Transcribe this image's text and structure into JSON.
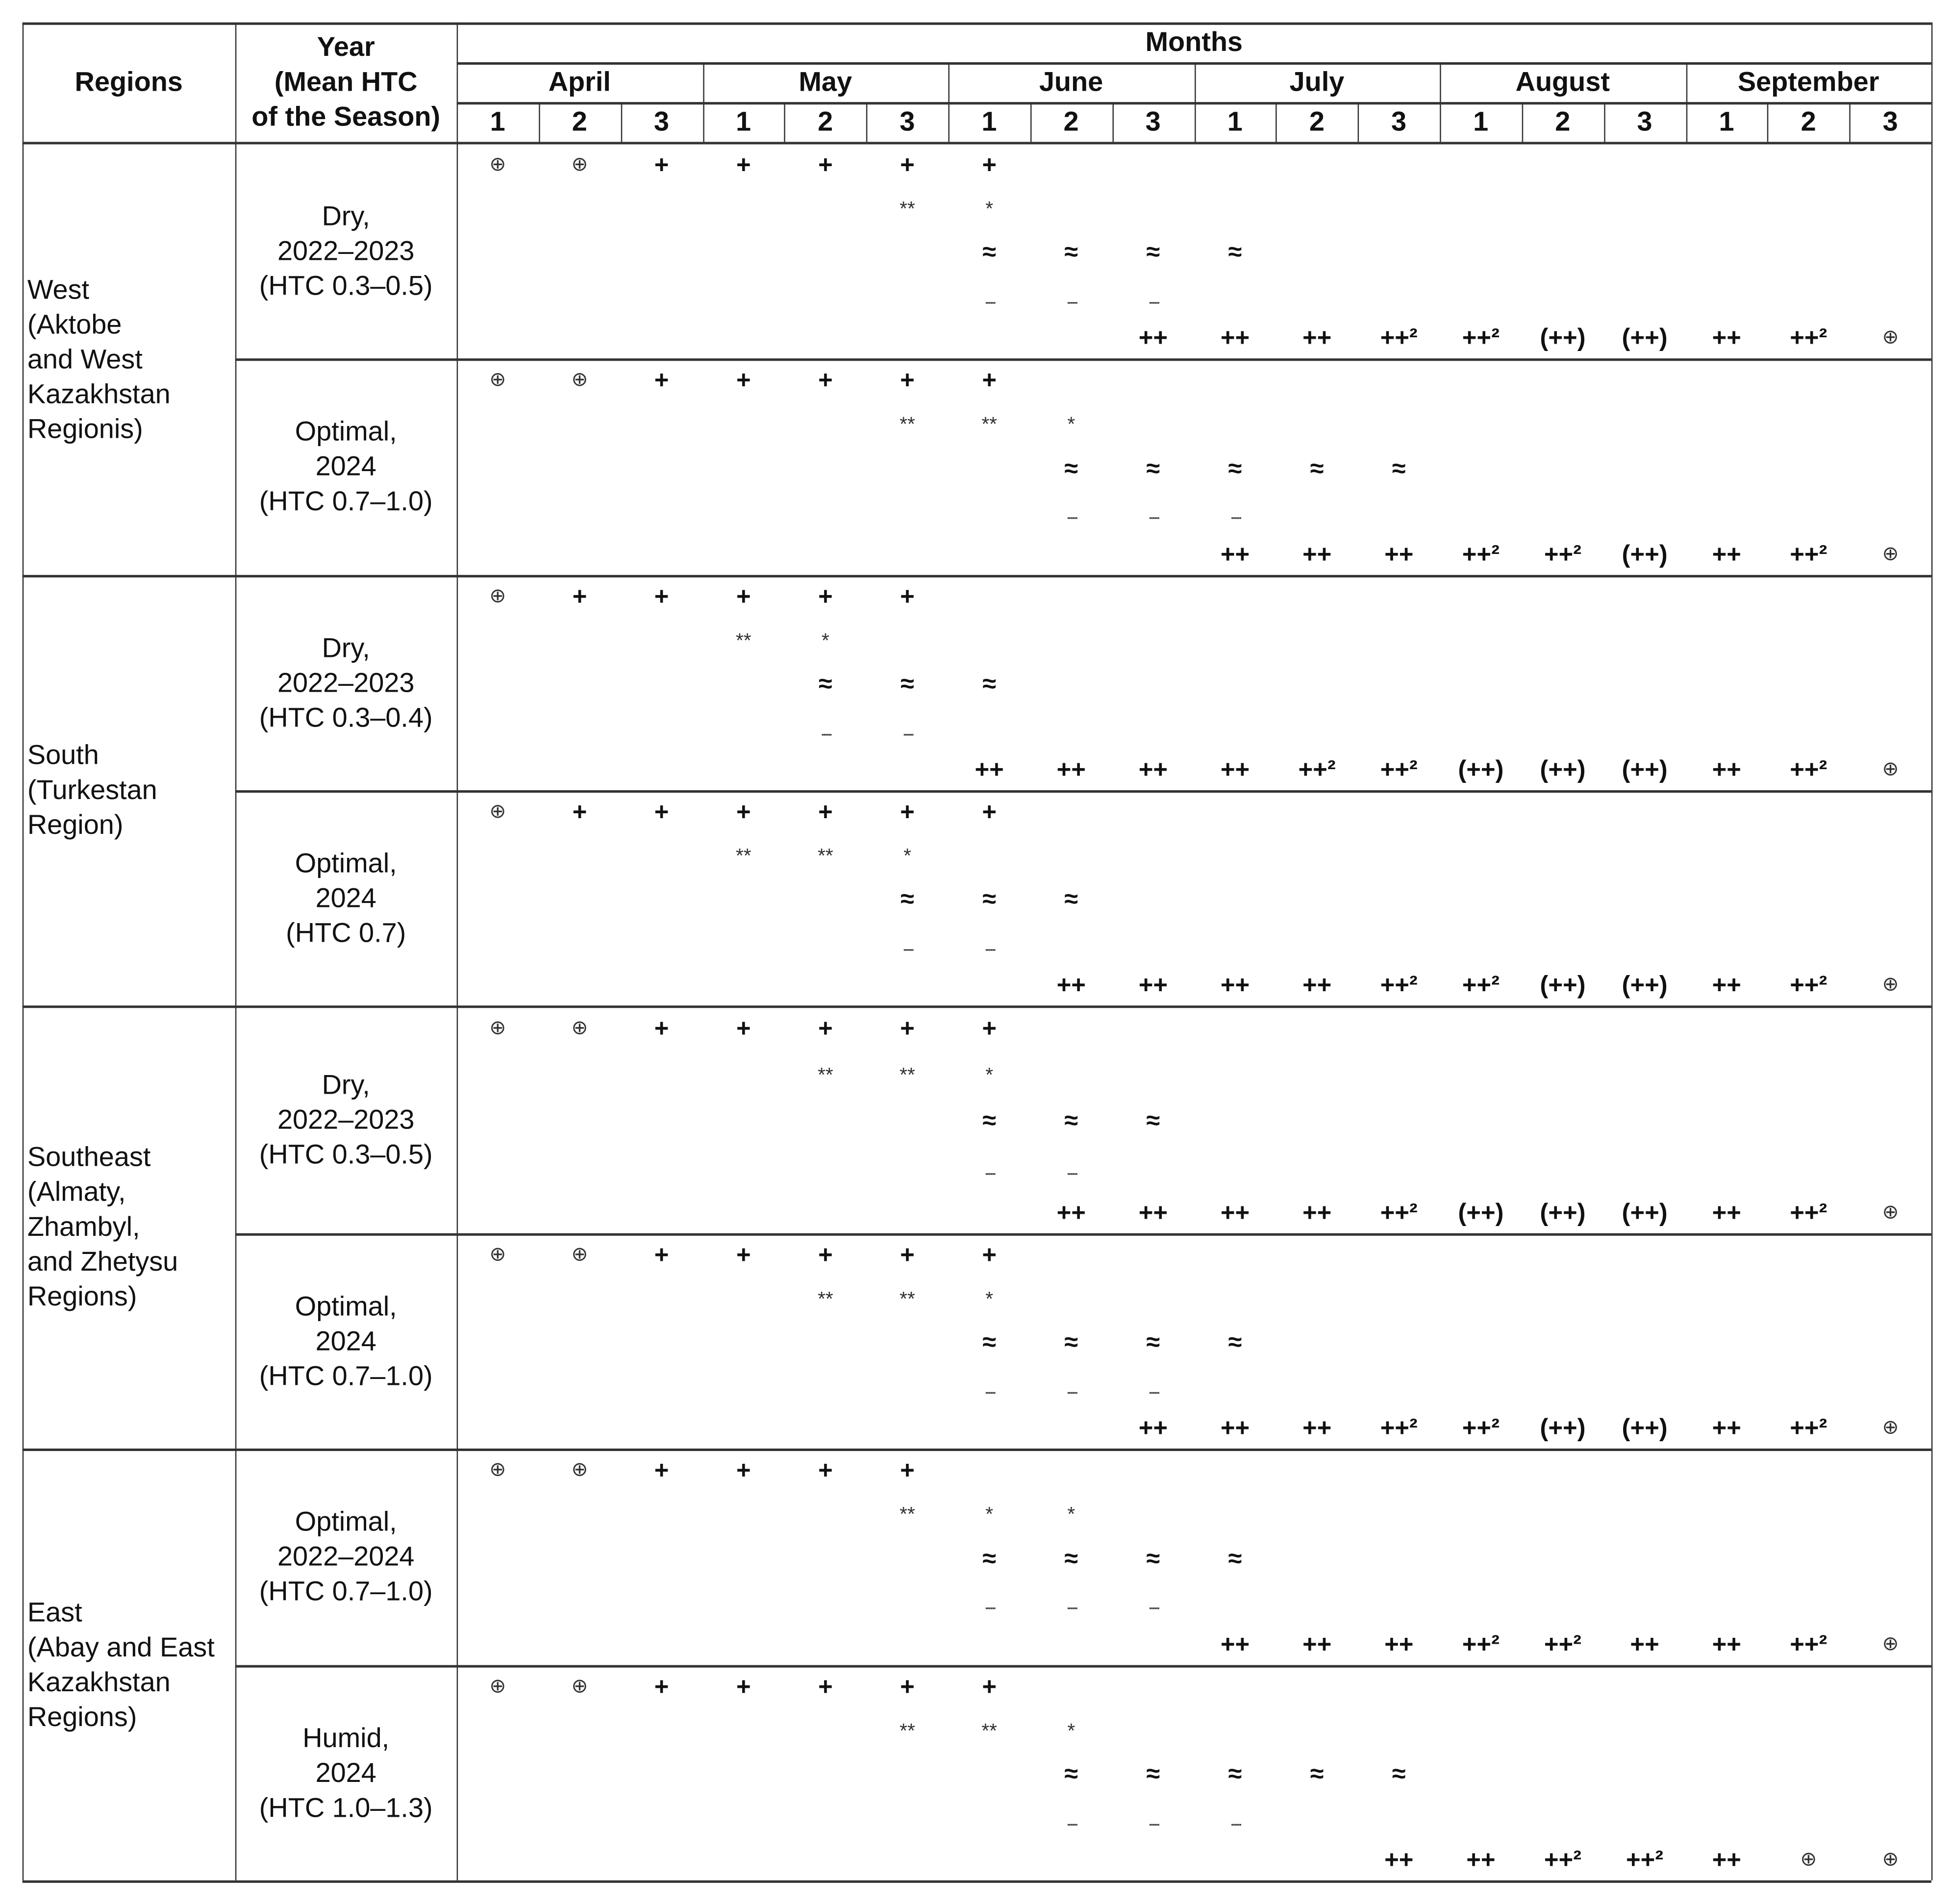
{
  "header": {
    "regions": "Regions",
    "year": "Year\n(Mean HTC\nof the Season)",
    "months_label": "Months",
    "months": [
      "April",
      "May",
      "June",
      "July",
      "August",
      "September"
    ],
    "decades": [
      "1",
      "2",
      "3"
    ]
  },
  "regions": [
    {
      "name": "West\n(Aktobe\nand West\nKazakhstan\nRegionis)",
      "rows": [
        0,
        1
      ]
    },
    {
      "name": "South\n(Turkestan\nRegion)",
      "rows": [
        2,
        3
      ]
    },
    {
      "name": "Southeast\n(Almaty,\nZhambyl,\nand Zhetysu\nRegions)",
      "rows": [
        4,
        5
      ]
    },
    {
      "name": "East\n(Abay and East\nKazakhstan\nRegions)",
      "rows": [
        6,
        7
      ]
    }
  ],
  "rows": [
    {
      "year": "Dry,\n2022–2023\n(HTC 0.3–0.5)",
      "lines": [
        [
          "⊕",
          "⊕",
          "+",
          "+",
          "+",
          "+",
          "+",
          "",
          "",
          "",
          "",
          "",
          "",
          "",
          "",
          "",
          "",
          ""
        ],
        [
          "",
          "",
          "",
          "",
          "",
          "**",
          "*",
          "",
          "",
          "",
          "",
          "",
          "",
          "",
          "",
          "",
          "",
          ""
        ],
        [
          "",
          "",
          "",
          "",
          "",
          "",
          "≈",
          "≈",
          "≈",
          "≈",
          "",
          "",
          "",
          "",
          "",
          "",
          "",
          ""
        ],
        [
          "",
          "",
          "",
          "",
          "",
          "",
          "......",
          "......",
          "......",
          "",
          "",
          "",
          "",
          "",
          "",
          "",
          "",
          ""
        ],
        [
          "",
          "",
          "",
          "",
          "",
          "",
          "",
          "",
          "++",
          "++",
          "++",
          "++²",
          "++²",
          "(++)",
          "(++)",
          "++",
          "++²",
          "⊕"
        ]
      ]
    },
    {
      "year": "Optimal,\n2024\n(HTC 0.7–1.0)",
      "lines": [
        [
          "⊕",
          "⊕",
          "+",
          "+",
          "+",
          "+",
          "+",
          "",
          "",
          "",
          "",
          "",
          "",
          "",
          "",
          "",
          "",
          ""
        ],
        [
          "",
          "",
          "",
          "",
          "",
          "**",
          "**",
          "*",
          "",
          "",
          "",
          "",
          "",
          "",
          "",
          "",
          "",
          ""
        ],
        [
          "",
          "",
          "",
          "",
          "",
          "",
          "",
          "≈",
          "≈",
          "≈",
          "≈",
          "≈",
          "",
          "",
          "",
          "",
          "",
          ""
        ],
        [
          "",
          "",
          "",
          "",
          "",
          "",
          "",
          "......",
          "......",
          "......",
          "",
          "",
          "",
          "",
          "",
          "",
          "",
          ""
        ],
        [
          "",
          "",
          "",
          "",
          "",
          "",
          "",
          "",
          "",
          "++",
          "++",
          "++",
          "++²",
          "++²",
          "(++)",
          "++",
          "++²",
          "⊕"
        ]
      ]
    },
    {
      "year": "Dry,\n2022–2023\n(HTC 0.3–0.4)",
      "lines": [
        [
          "⊕",
          "+",
          "+",
          "+",
          "+",
          "+",
          "",
          "",
          "",
          "",
          "",
          "",
          "",
          "",
          "",
          "",
          "",
          ""
        ],
        [
          "",
          "",
          "",
          "**",
          "*",
          "",
          "",
          "",
          "",
          "",
          "",
          "",
          "",
          "",
          "",
          "",
          "",
          ""
        ],
        [
          "",
          "",
          "",
          "",
          "≈",
          "≈",
          "≈",
          "",
          "",
          "",
          "",
          "",
          "",
          "",
          "",
          "",
          "",
          ""
        ],
        [
          "",
          "",
          "",
          "",
          "......",
          "......",
          "",
          "",
          "",
          "",
          "",
          "",
          "",
          "",
          "",
          "",
          "",
          ""
        ],
        [
          "",
          "",
          "",
          "",
          "",
          "",
          "++",
          "++",
          "++",
          "++",
          "++²",
          "++²",
          "(++)",
          "(++)",
          "(++)",
          "++",
          "++²",
          "⊕"
        ]
      ]
    },
    {
      "year": "Optimal,\n2024\n(HTC 0.7)",
      "lines": [
        [
          "⊕",
          "+",
          "+",
          "+",
          "+",
          "+",
          "+",
          "",
          "",
          "",
          "",
          "",
          "",
          "",
          "",
          "",
          "",
          ""
        ],
        [
          "",
          "",
          "",
          "**",
          "**",
          "*",
          "",
          "",
          "",
          "",
          "",
          "",
          "",
          "",
          "",
          "",
          "",
          ""
        ],
        [
          "",
          "",
          "",
          "",
          "",
          "≈",
          "≈",
          "≈",
          "",
          "",
          "",
          "",
          "",
          "",
          "",
          "",
          "",
          ""
        ],
        [
          "",
          "",
          "",
          "",
          "",
          "......",
          "......",
          "",
          "",
          "",
          "",
          "",
          "",
          "",
          "",
          "",
          "",
          ""
        ],
        [
          "",
          "",
          "",
          "",
          "",
          "",
          "",
          "++",
          "++",
          "++",
          "++",
          "++²",
          "++²",
          "(++)",
          "(++)",
          "++",
          "++²",
          "⊕"
        ]
      ]
    },
    {
      "year": "Dry,\n2022–2023\n(HTC 0.3–0.5)",
      "lines": [
        [
          "⊕",
          "⊕",
          "+",
          "+",
          "+",
          "+",
          "+",
          "",
          "",
          "",
          "",
          "",
          "",
          "",
          "",
          "",
          "",
          ""
        ],
        [
          "",
          "",
          "",
          "",
          "**",
          "**",
          "*",
          "",
          "",
          "",
          "",
          "",
          "",
          "",
          "",
          "",
          "",
          ""
        ],
        [
          "",
          "",
          "",
          "",
          "",
          "",
          "≈",
          "≈",
          "≈",
          "",
          "",
          "",
          "",
          "",
          "",
          "",
          "",
          ""
        ],
        [
          "",
          "",
          "",
          "",
          "",
          "",
          "......",
          "......",
          "",
          "",
          "",
          "",
          "",
          "",
          "",
          "",
          "",
          ""
        ],
        [
          "",
          "",
          "",
          "",
          "",
          "",
          "",
          "++",
          "++",
          "++",
          "++",
          "++²",
          "(++)",
          "(++)",
          "(++)",
          "++",
          "++²",
          "⊕"
        ]
      ]
    },
    {
      "year": "Optimal,\n2024\n(HTC 0.7–1.0)",
      "lines": [
        [
          "⊕",
          "⊕",
          "+",
          "+",
          "+",
          "+",
          "+",
          "",
          "",
          "",
          "",
          "",
          "",
          "",
          "",
          "",
          "",
          ""
        ],
        [
          "",
          "",
          "",
          "",
          "**",
          "**",
          "*",
          "",
          "",
          "",
          "",
          "",
          "",
          "",
          "",
          "",
          "",
          ""
        ],
        [
          "",
          "",
          "",
          "",
          "",
          "",
          "≈",
          "≈",
          "≈",
          "≈",
          "",
          "",
          "",
          "",
          "",
          "",
          "",
          ""
        ],
        [
          "",
          "",
          "",
          "",
          "",
          "",
          "......",
          "......",
          "......",
          "",
          "",
          "",
          "",
          "",
          "",
          "",
          "",
          ""
        ],
        [
          "",
          "",
          "",
          "",
          "",
          "",
          "",
          "",
          "++",
          "++",
          "++",
          "++²",
          "++²",
          "(++)",
          "(++)",
          "++",
          "++²",
          "⊕"
        ]
      ]
    },
    {
      "year": "Optimal,\n2022–2024\n(HTC 0.7–1.0)",
      "lines": [
        [
          "⊕",
          "⊕",
          "+",
          "+",
          "+",
          "+",
          "",
          "",
          "",
          "",
          "",
          "",
          "",
          "",
          "",
          "",
          "",
          ""
        ],
        [
          "",
          "",
          "",
          "",
          "",
          "**",
          "*",
          "*",
          "",
          "",
          "",
          "",
          "",
          "",
          "",
          "",
          "",
          ""
        ],
        [
          "",
          "",
          "",
          "",
          "",
          "",
          "≈",
          "≈",
          "≈",
          "≈",
          "",
          "",
          "",
          "",
          "",
          "",
          "",
          ""
        ],
        [
          "",
          "",
          "",
          "",
          "",
          "",
          "......",
          "......",
          "......",
          "",
          "",
          "",
          "",
          "",
          "",
          "",
          "",
          ""
        ],
        [
          "",
          "",
          "",
          "",
          "",
          "",
          "",
          "",
          "",
          "++",
          "++",
          "++",
          "++²",
          "++²",
          "++",
          "++",
          "++²",
          "⊕"
        ]
      ]
    },
    {
      "year": "Humid,\n2024\n(HTC 1.0–1.3)",
      "lines": [
        [
          "⊕",
          "⊕",
          "+",
          "+",
          "+",
          "+",
          "+",
          "",
          "",
          "",
          "",
          "",
          "",
          "",
          "",
          "",
          "",
          ""
        ],
        [
          "",
          "",
          "",
          "",
          "",
          "**",
          "**",
          "*",
          "",
          "",
          "",
          "",
          "",
          "",
          "",
          "",
          "",
          ""
        ],
        [
          "",
          "",
          "",
          "",
          "",
          "",
          "",
          "≈",
          "≈",
          "≈",
          "≈",
          "≈",
          "",
          "",
          "",
          "",
          "",
          ""
        ],
        [
          "",
          "",
          "",
          "",
          "",
          "",
          "",
          "......",
          "......",
          "......",
          "",
          "",
          "",
          "",
          "",
          "",
          "",
          ""
        ],
        [
          "",
          "",
          "",
          "",
          "",
          "",
          "",
          "",
          "",
          "",
          "",
          "++",
          "++",
          "++²",
          "++²",
          "++",
          "⊕",
          "⊕"
        ]
      ]
    }
  ]
}
